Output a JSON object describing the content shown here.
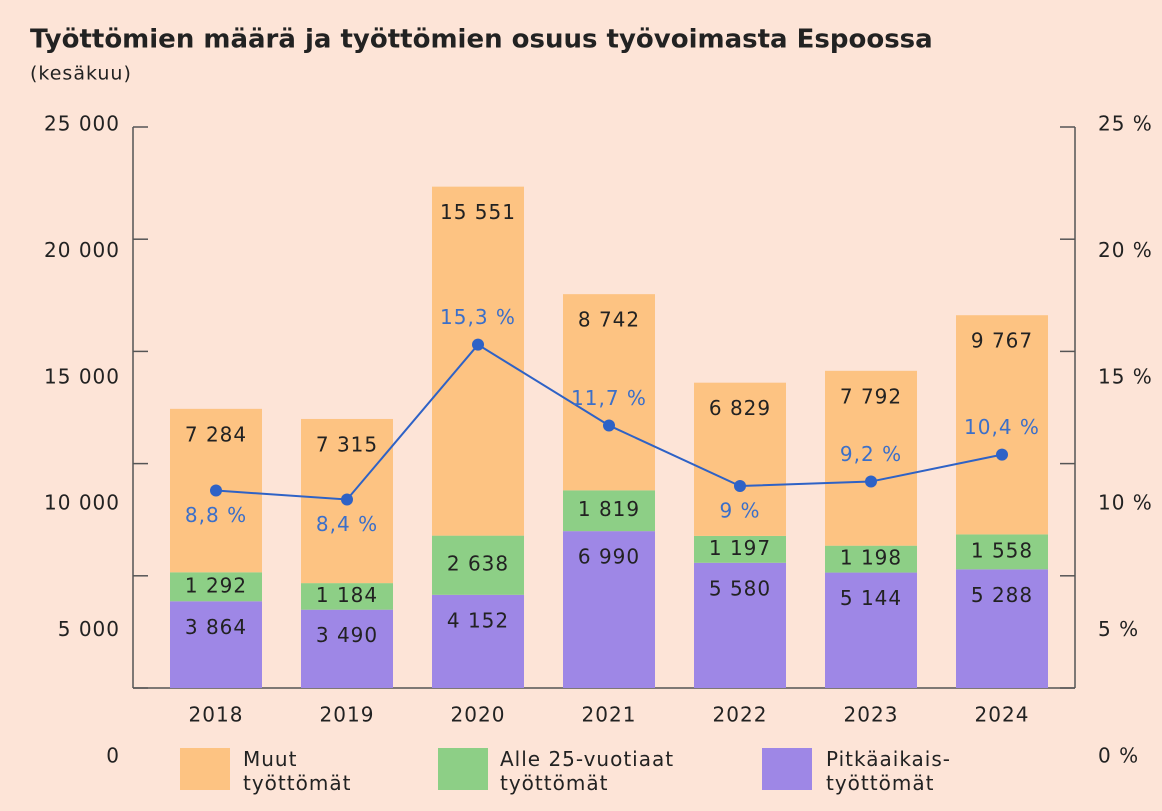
{
  "chart_data": {
    "type": "stacked_bar_line",
    "title": "Työttömien määrä ja työttömien osuus työvoimasta Espoossa",
    "subtitle": "(kesäkuu)",
    "categories": [
      "2018",
      "2019",
      "2020",
      "2021",
      "2022",
      "2023",
      "2024"
    ],
    "series": [
      {
        "name": "Muut työttömät",
        "color": "#fdc382",
        "values": [
          7284,
          7315,
          15551,
          8742,
          6829,
          7792,
          9767
        ],
        "value_labels": [
          "7 284",
          "7 315",
          "15 551",
          "8 742",
          "6 829",
          "7 792",
          "9 767"
        ]
      },
      {
        "name": "Alle 25-vuotiaat työttömät",
        "color": "#8dcf86",
        "values": [
          1292,
          1184,
          2638,
          1819,
          1197,
          1198,
          1558
        ],
        "value_labels": [
          "1 292",
          "1 184",
          "2 638",
          "1 819",
          "1 197",
          "1 198",
          "1 558"
        ]
      },
      {
        "name": "Pitkäaikais-työttömät",
        "color": "#9e87e6",
        "values": [
          3864,
          3490,
          4152,
          6990,
          5580,
          5144,
          5288
        ],
        "value_labels": [
          "3 864",
          "3 490",
          "4 152",
          "6 990",
          "5 580",
          "5 144",
          "5 288"
        ]
      },
      {
        "axis": "y2",
        "color": "#2e62c6",
        "values": [
          8.8,
          8.4,
          15.3,
          11.7,
          9,
          9.2,
          10.4
        ],
        "value_labels": [
          "8,8 %",
          "8,4 %",
          "15,3 %",
          "11,7 %",
          "9 %",
          "9,2 %",
          "10,4 %"
        ]
      }
    ],
    "ylim": [
      0,
      25000
    ],
    "yticks": [
      {
        "value": 0,
        "label": "0"
      },
      {
        "value": 5000,
        "label": "5 000"
      },
      {
        "value": 10000,
        "label": "10 000"
      },
      {
        "value": 15000,
        "label": "15 000"
      },
      {
        "value": 20000,
        "label": "20 000"
      },
      {
        "value": 25000,
        "label": "25 000"
      }
    ],
    "y2lim": [
      0,
      25
    ],
    "y2ticks": [
      {
        "value": 0,
        "label": "0 %"
      },
      {
        "value": 5,
        "label": "5 %"
      },
      {
        "value": 10,
        "label": "10 %"
      },
      {
        "value": 15,
        "label": "15 %"
      },
      {
        "value": 20,
        "label": "20 %"
      },
      {
        "value": 25,
        "label": "25 %"
      }
    ]
  }
}
